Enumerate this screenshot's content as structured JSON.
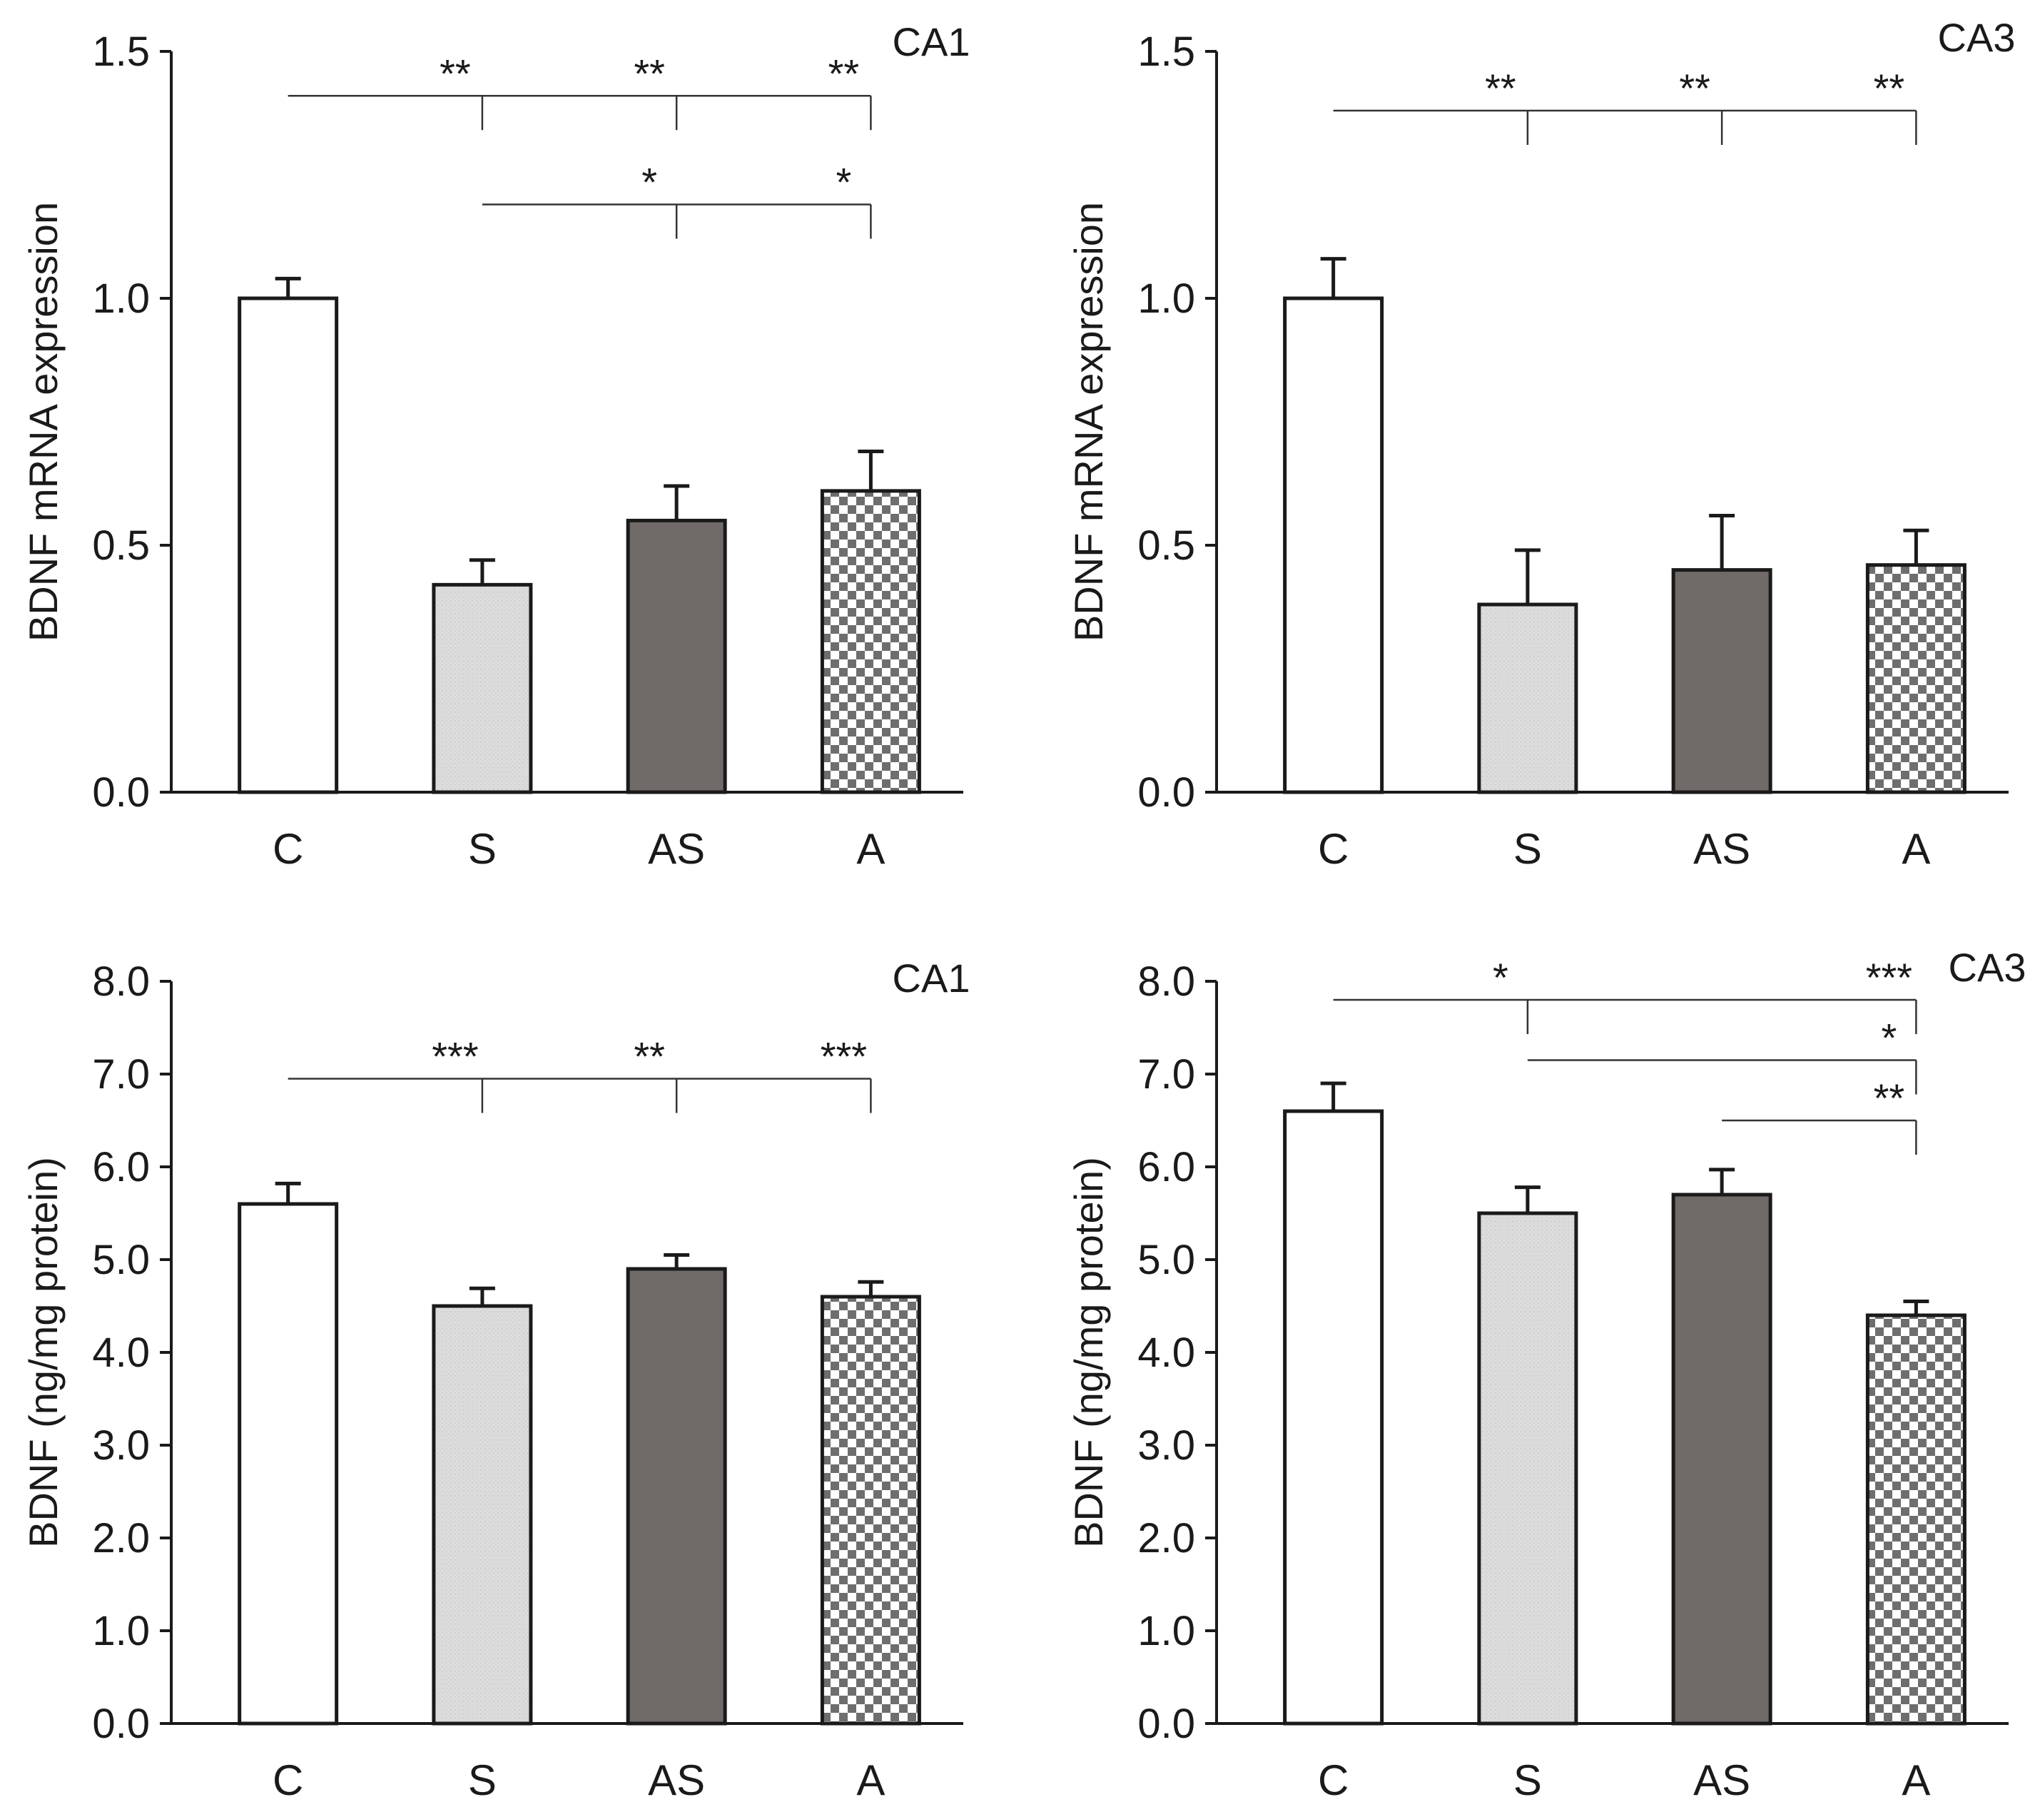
{
  "colors": {
    "C": "#ffffff",
    "S": "#dcdcdc",
    "AS": "#706b68",
    "A_dark": "#6e6e6e",
    "A_light": "#ffffff",
    "axis": "#1a1a1a"
  },
  "chart_data": [
    {
      "type": "bar",
      "region": "CA1",
      "ylabel": "BDNF mRNA expression",
      "categories": [
        "C",
        "S",
        "AS",
        "A"
      ],
      "values": [
        1.0,
        0.42,
        0.55,
        0.61
      ],
      "errors": [
        0.04,
        0.05,
        0.07,
        0.08
      ],
      "ylim": [
        0,
        1.5
      ],
      "yticks": [
        0,
        0.5,
        1.0,
        1.5
      ],
      "yticklabels": [
        "0.0",
        "0.5",
        "1.0",
        "1.5"
      ],
      "significance": [
        {
          "from": "C",
          "to": [
            "S",
            "AS",
            "A"
          ],
          "y": 1.41,
          "labels": [
            "**",
            "**",
            "**"
          ]
        },
        {
          "from": "S",
          "to": [
            "AS",
            "A"
          ],
          "y": 1.19,
          "labels": [
            "*",
            "*"
          ]
        }
      ]
    },
    {
      "type": "bar",
      "region": "CA3",
      "ylabel": "BDNF mRNA expression",
      "categories": [
        "C",
        "S",
        "AS",
        "A"
      ],
      "values": [
        1.0,
        0.38,
        0.45,
        0.46
      ],
      "errors": [
        0.08,
        0.11,
        0.11,
        0.07
      ],
      "ylim": [
        0,
        1.5
      ],
      "yticks": [
        0,
        0.5,
        1.0,
        1.5
      ],
      "yticklabels": [
        "0.0",
        "0.5",
        "1.0",
        "1.5"
      ],
      "significance": [
        {
          "from": "C",
          "to": [
            "S",
            "AS",
            "A"
          ],
          "y": 1.38,
          "labels": [
            "**",
            "**",
            "**"
          ]
        }
      ]
    },
    {
      "type": "bar",
      "region": "CA1",
      "ylabel": "BDNF (ng/mg protein)",
      "categories": [
        "C",
        "S",
        "AS",
        "A"
      ],
      "values": [
        5.6,
        4.5,
        4.9,
        4.6
      ],
      "errors": [
        0.22,
        0.19,
        0.15,
        0.16
      ],
      "ylim": [
        0,
        8
      ],
      "yticks": [
        0,
        1,
        2,
        3,
        4,
        5,
        6,
        7,
        8
      ],
      "yticklabels": [
        "0.0",
        "1.0",
        "2.0",
        "3.0",
        "4.0",
        "5.0",
        "6.0",
        "7.0",
        "8.0"
      ],
      "significance": [
        {
          "from": "C",
          "to": [
            "S",
            "AS",
            "A"
          ],
          "y": 6.95,
          "labels": [
            "***",
            "**",
            "***"
          ]
        }
      ]
    },
    {
      "type": "bar",
      "region": "CA3",
      "ylabel": "BDNF (ng/mg protein)",
      "categories": [
        "C",
        "S",
        "AS",
        "A"
      ],
      "values": [
        6.6,
        5.5,
        5.7,
        4.4
      ],
      "errors": [
        0.3,
        0.28,
        0.27,
        0.15
      ],
      "ylim": [
        0,
        8
      ],
      "yticks": [
        0,
        1,
        2,
        3,
        4,
        5,
        6,
        7,
        8
      ],
      "yticklabels": [
        "0.0",
        "1.0",
        "2.0",
        "3.0",
        "4.0",
        "5.0",
        "6.0",
        "7.0",
        "8.0"
      ],
      "significance": [
        {
          "from": "C",
          "to": [
            "S",
            "A"
          ],
          "y": 7.8,
          "labels": [
            "*",
            "***"
          ]
        },
        {
          "from": "S",
          "to": [
            "A"
          ],
          "y": 7.15,
          "labels": [
            "*"
          ]
        },
        {
          "from": "AS",
          "to": [
            "A"
          ],
          "y": 6.5,
          "labels": [
            "**"
          ]
        }
      ]
    }
  ]
}
